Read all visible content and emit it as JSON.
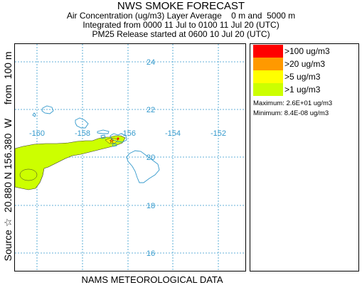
{
  "header": {
    "title": "NWS SMOKE FORECAST",
    "line1": "Air Concentration (ug/m3) Layer Average    0 m and  5000 m",
    "line2": "Integrated from 0000 11 Jul to 0100 11 Jul 20 (UTC)",
    "line3": "PM25 Release started at 0600 10 Jul 20 (UTC)"
  },
  "side_label": "Source ☆  20.880 N 156.380  W     from  100 m",
  "footer": "NAMS METEOROLOGICAL DATA",
  "map": {
    "lat_labels": [
      "24",
      "22",
      "20",
      "18",
      "16"
    ],
    "lon_labels": [
      "-160",
      "-158",
      "-156",
      "-154",
      "-152"
    ]
  },
  "legend": {
    "items": [
      {
        "label": ">100 ug/m3",
        "color": "#ff0000"
      },
      {
        "label": ">20 ug/m3",
        "color": "#ff9900"
      },
      {
        "label": ">5 ug/m3",
        "color": "#ffff00"
      },
      {
        "label": ">1 ug/m3",
        "color": "#ccff00"
      }
    ],
    "maximum": "Maximum: 2.6E+01 ug/m3",
    "minimum": "Minimum: 8.4E-08 ug/m3"
  },
  "colors": {
    "coast": "#3399cc",
    "grid": "#3399cc",
    "smoke_outline": "#333333"
  }
}
